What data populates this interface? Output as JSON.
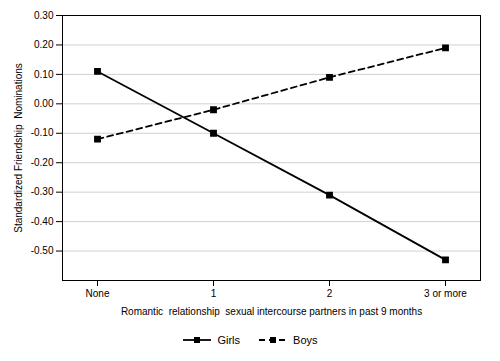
{
  "chart_data": {
    "type": "line",
    "xlabel": "Romantic  relationship  sexual intercourse partners in past 9 months",
    "ylabel": "Standardized Friendship  Nominations",
    "categories": [
      "None",
      "1",
      "2",
      "3 or more"
    ],
    "series": [
      {
        "name": "Girls",
        "color": "#000000",
        "values": [
          0.11,
          -0.1,
          -0.31,
          -0.53
        ],
        "line_style": "solid",
        "marker": "square"
      },
      {
        "name": "Boys",
        "color": "#000000",
        "values": [
          -0.12,
          -0.02,
          0.09,
          0.19
        ],
        "line_style": "dashed",
        "marker": "square"
      }
    ],
    "ylim": [
      -0.6,
      0.3
    ],
    "yticks": [
      {
        "value": -0.5,
        "label": "-0.50"
      },
      {
        "value": -0.4,
        "label": "-0.40"
      },
      {
        "value": -0.3,
        "label": "-0.30"
      },
      {
        "value": -0.2,
        "label": "-0.20"
      },
      {
        "value": -0.1,
        "label": "-0.10"
      },
      {
        "value": 0.0,
        "label": "0.00"
      },
      {
        "value": 0.1,
        "label": "0.10"
      },
      {
        "value": 0.2,
        "label": "0.20"
      },
      {
        "value": 0.3,
        "label": "0.30"
      }
    ],
    "grid": true,
    "legend": "bottom"
  }
}
